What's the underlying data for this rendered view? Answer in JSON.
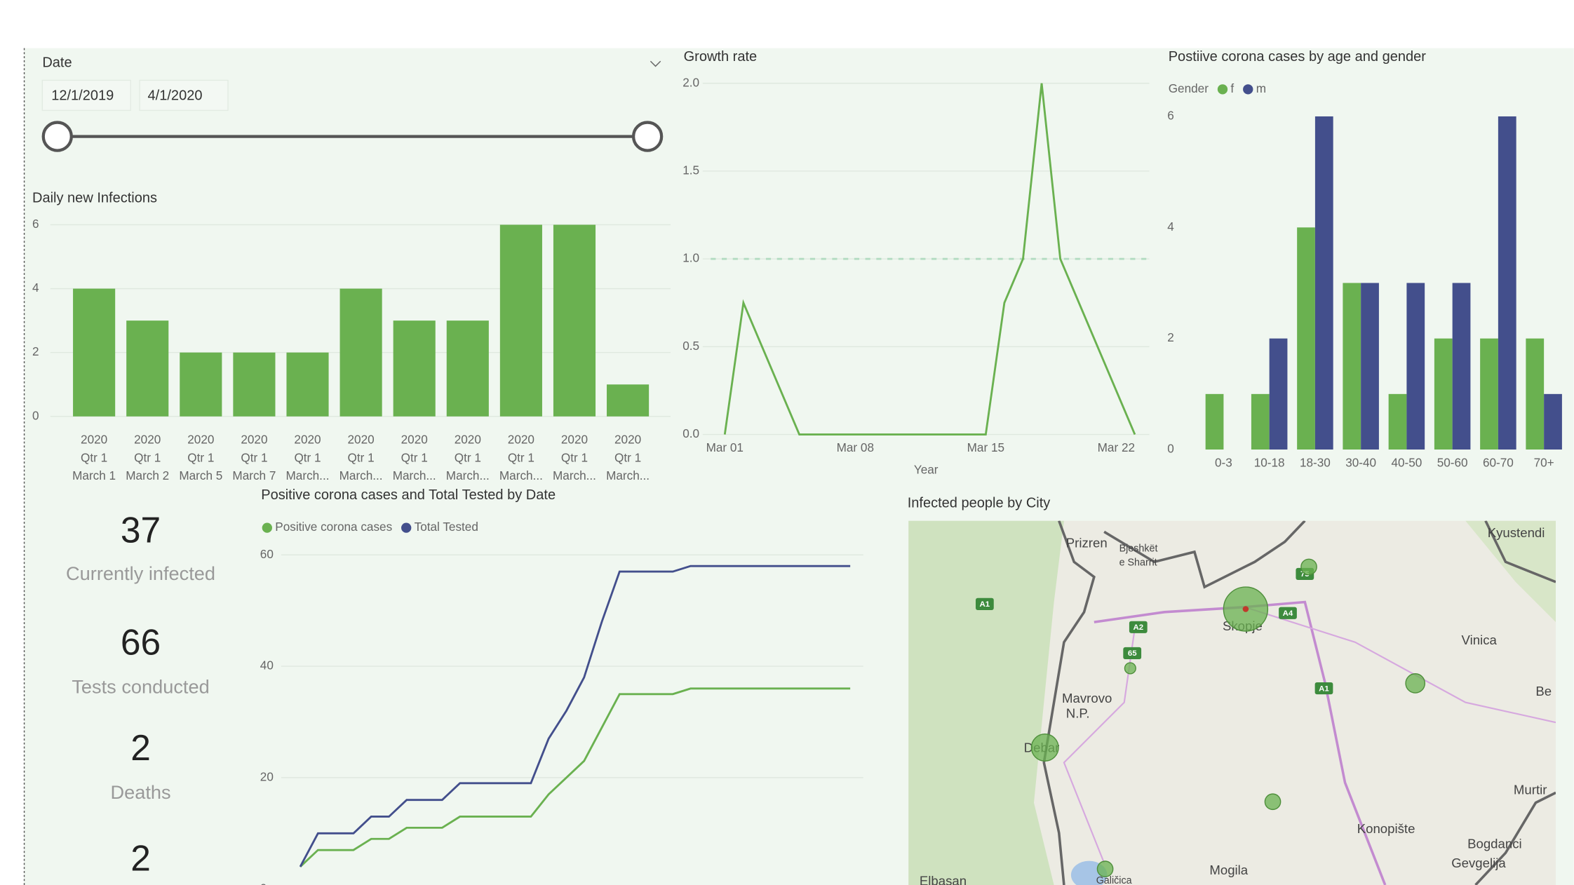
{
  "slicer": {
    "title": "Date",
    "start": "12/1/2019",
    "end": "4/1/2020"
  },
  "chart_data": [
    {
      "type": "bar",
      "title": "Daily new Infections",
      "categories": [
        [
          "2020",
          "Qtr 1",
          "March 1"
        ],
        [
          "2020",
          "Qtr 1",
          "March 2"
        ],
        [
          "2020",
          "Qtr 1",
          "March 5"
        ],
        [
          "2020",
          "Qtr 1",
          "March 7"
        ],
        [
          "2020",
          "Qtr 1",
          "March..."
        ],
        [
          "2020",
          "Qtr 1",
          "March..."
        ],
        [
          "2020",
          "Qtr 1",
          "March..."
        ],
        [
          "2020",
          "Qtr 1",
          "March..."
        ],
        [
          "2020",
          "Qtr 1",
          "March..."
        ],
        [
          "2020",
          "Qtr 1",
          "March..."
        ],
        [
          "2020",
          "Qtr 1",
          "March..."
        ]
      ],
      "values": [
        4,
        3,
        2,
        2,
        2,
        4,
        3,
        3,
        6,
        6,
        1
      ],
      "color": "#6ab150",
      "ylim": [
        0,
        6
      ],
      "yticks": [
        0,
        2,
        4,
        6
      ],
      "grid": true
    },
    {
      "type": "line",
      "title": "Growth rate",
      "x_label": "Year",
      "x": [
        "Mar 01",
        "Mar 02",
        "Mar 05",
        "Mar 15",
        "Mar 16",
        "Mar 17",
        "Mar 18",
        "Mar 19",
        "Mar 23"
      ],
      "values": [
        0,
        0.75,
        0,
        0,
        0.75,
        1.0,
        2.0,
        1.0,
        0
      ],
      "color": "#6ab150",
      "xlim": [
        "Mar 01",
        "Mar 23"
      ],
      "xticks": [
        "Mar 01",
        "Mar 08",
        "Mar 15",
        "Mar 22"
      ],
      "ylim": [
        0,
        2
      ],
      "yticks": [
        {
          "value": 0,
          "label": "0.0"
        },
        0.5,
        {
          "value": 1,
          "label": "1.0"
        },
        1.5,
        {
          "value": 2,
          "label": "2.0"
        }
      ],
      "reference_line": 1,
      "reference_color": "#b3dcc2",
      "grid": true
    },
    {
      "type": "bar",
      "title": "Postiive corona cases by age and gender",
      "legend_title": "Gender",
      "categories": [
        "0-3",
        "10-18",
        "18-30",
        "30-40",
        "40-50",
        "50-60",
        "60-70",
        "70+"
      ],
      "series": [
        {
          "name": "f",
          "color": "#6ab150",
          "values": [
            1,
            1,
            4,
            3,
            1,
            2,
            2,
            2
          ]
        },
        {
          "name": "m",
          "color": "#434f8c",
          "values": [
            0,
            2,
            6,
            3,
            3,
            3,
            6,
            1
          ]
        }
      ],
      "ylim": [
        0,
        6
      ],
      "yticks": [
        0,
        2,
        4,
        6
      ],
      "grid": false
    },
    {
      "type": "line",
      "title": "Positive corona cases and Total Tested by Date",
      "series": [
        {
          "name": "Positive corona cases",
          "color": "#6ab150",
          "values": [
            4,
            7,
            7,
            7,
            9,
            9,
            11,
            11,
            11,
            13,
            13,
            13,
            13,
            13,
            17,
            20,
            23,
            29,
            35,
            35,
            35,
            35,
            36,
            36,
            36,
            36,
            36,
            36,
            36,
            36,
            36,
            36
          ]
        },
        {
          "name": "Total Tested",
          "color": "#434f8c",
          "values": [
            4,
            10,
            10,
            10,
            13,
            13,
            16,
            16,
            16,
            19,
            19,
            19,
            19,
            19,
            27,
            32,
            38,
            48,
            57,
            57,
            57,
            57,
            58,
            58,
            58,
            58,
            58,
            58,
            58,
            58,
            58,
            58
          ]
        }
      ],
      "ylim": [
        0,
        60
      ],
      "yticks": [
        0,
        20,
        40,
        60
      ],
      "grid": true
    }
  ],
  "cards": [
    {
      "value": 37,
      "label": "Currently infected"
    },
    {
      "value": 66,
      "label": "Tests conducted"
    },
    {
      "value": 2,
      "label": "Deaths"
    },
    {
      "value": 2
    }
  ],
  "map": {
    "title": "Infected people by City",
    "places": [
      "Prizren",
      "Bjeshkët",
      "e Sharrit",
      "Skopje",
      "Vinica",
      "Mavrovo",
      "N.P.",
      "Debar",
      "Konopište",
      "Mogila",
      "Kyustendi",
      "Be",
      "Murtir",
      "Bogdanci",
      "Gevgelija",
      "Elbasan",
      "Galičica"
    ],
    "roads": [
      "A1",
      "A2",
      "65",
      "A4",
      "A1",
      "75"
    ],
    "bubbles": [
      16,
      6,
      1,
      2,
      3,
      2,
      2
    ],
    "bubble_color": "#6ab150"
  }
}
